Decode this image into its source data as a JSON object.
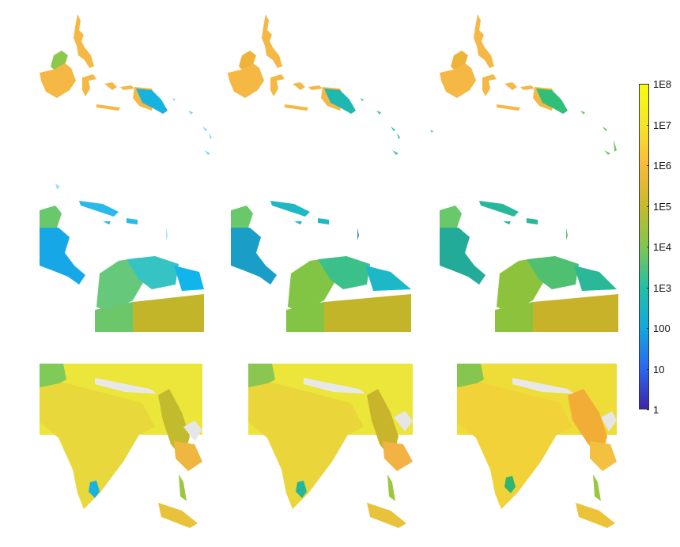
{
  "figure": {
    "layout": "3x3 grid of choropleth map panels",
    "rows": [
      {
        "region": "maritime-southeast-asia"
      },
      {
        "region": "central-america-caribbean"
      },
      {
        "region": "south-asia"
      }
    ],
    "columns": 3
  },
  "colorbar": {
    "scale": "log",
    "ticks": [
      "1E8",
      "1E7",
      "1E6",
      "1E5",
      "1E4",
      "1E3",
      "100",
      "10",
      "1"
    ],
    "min": 1,
    "max": 100000000,
    "colormap": [
      "#3d26a8",
      "#2b67f1",
      "#12a9dc",
      "#22bfa6",
      "#80c650",
      "#c6bb2b",
      "#f8ba3b",
      "#f5e52a",
      "#f9fb0e"
    ]
  },
  "palette": {
    "deep_blue": "#3d26a8",
    "blue": "#2b67f1",
    "cyan": "#12a9dc",
    "teal": "#22bfa6",
    "green": "#80c650",
    "olive": "#c6bb2b",
    "orange": "#f8ba3b",
    "yellow": "#f5e52a",
    "bright_yellow": "#f9fb0e"
  }
}
